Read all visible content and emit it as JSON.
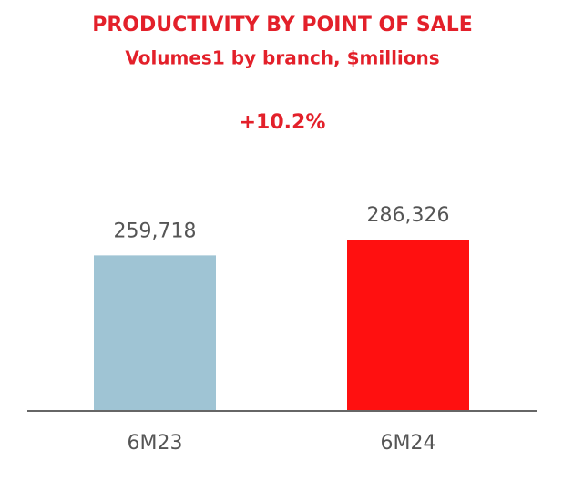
{
  "chart_data": {
    "type": "bar",
    "title": "PRODUCTIVITY BY POINT OF SALE",
    "subtitle": "Volumes1 by branch, $millions",
    "annotation": "+10.2%",
    "categories": [
      "6M23",
      "6M24"
    ],
    "values": [
      259718,
      286326
    ],
    "value_labels": [
      "259,718",
      "286,326"
    ],
    "colors": [
      "#9fc4d4",
      "#ff1010"
    ]
  }
}
